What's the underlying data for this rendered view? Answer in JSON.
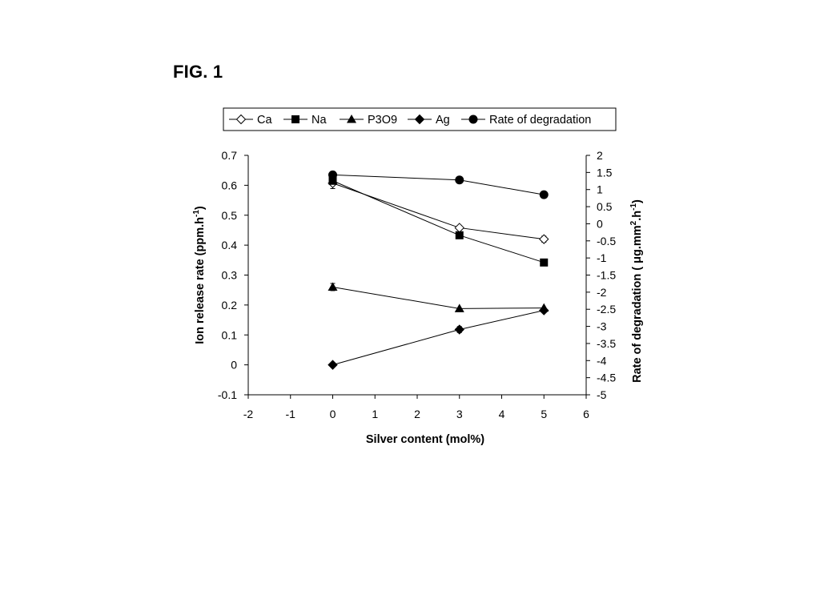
{
  "figure": {
    "title": "FIG. 1"
  },
  "chart_data": {
    "type": "line",
    "x": {
      "label": "Silver content (mol%)",
      "ticks": [
        -2,
        -1,
        0,
        1,
        2,
        3,
        4,
        5,
        6
      ],
      "range": [
        -2,
        6
      ]
    },
    "y_left": {
      "label_base": "Ion release rate (ppm.h",
      "label_sup": "-1",
      "label_end": ")",
      "ticks": [
        -0.1,
        0,
        0.1,
        0.2,
        0.3,
        0.4,
        0.5,
        0.6,
        0.7
      ],
      "tick_labels": [
        "-0.1",
        "0",
        "0.1",
        "0.2",
        "0.3",
        "0.4",
        "0.5",
        "0.6",
        "0.7"
      ],
      "range": [
        -0.1,
        0.7
      ]
    },
    "y_right": {
      "label_parts": [
        {
          "text": "Rate of degradation ( ",
          "sup": false
        },
        {
          "text": "μ",
          "sup": false
        },
        {
          "text": "g.mm",
          "sup": false
        },
        {
          "text": "2",
          "sup": true
        },
        {
          "text": ".h",
          "sup": false
        },
        {
          "text": "-1",
          "sup": true
        },
        {
          "text": ")",
          "sup": false
        }
      ],
      "ticks": [
        -5,
        -4.5,
        -4,
        -3.5,
        -3,
        -2.5,
        -2,
        -1.5,
        -1,
        -0.5,
        0,
        0.5,
        1,
        1.5,
        2
      ],
      "tick_labels": [
        "-5",
        "-4.5",
        "-4",
        "-3.5",
        "-3",
        "-2.5",
        "-2",
        "-1.5",
        "-1",
        "-0.5",
        "0",
        "0.5",
        "1",
        "1.5",
        "2"
      ],
      "range": [
        -5,
        2
      ]
    },
    "legend": {
      "placement": "top",
      "entries": [
        "Ca",
        "Na",
        "P3O9",
        "Ag",
        "Rate of degradation"
      ]
    },
    "series": [
      {
        "name": "Ca",
        "marker": "diamond-open",
        "axis": "left",
        "x": [
          0,
          3,
          5
        ],
        "y": [
          0.607,
          0.458,
          0.42
        ],
        "err": [
          0.018,
          0.008,
          0.01
        ]
      },
      {
        "name": "Na",
        "marker": "square",
        "axis": "left",
        "x": [
          0,
          3,
          5
        ],
        "y": [
          0.615,
          0.433,
          0.342
        ],
        "err": [
          0,
          0,
          0
        ]
      },
      {
        "name": "P3O9",
        "marker": "triangle",
        "axis": "left",
        "x": [
          0,
          3,
          5
        ],
        "y": [
          0.26,
          0.188,
          0.19
        ],
        "err": [
          0.012,
          0,
          0
        ]
      },
      {
        "name": "Ag",
        "marker": "diamond",
        "axis": "left",
        "x": [
          0,
          3,
          5
        ],
        "y": [
          0.0,
          0.118,
          0.182
        ],
        "err": [
          0,
          0.01,
          0
        ]
      },
      {
        "name": "Rate of degradation",
        "marker": "circle",
        "axis": "right",
        "x": [
          0,
          3,
          5
        ],
        "y": [
          1.43,
          1.28,
          0.85
        ],
        "err": [
          0,
          0,
          0
        ]
      }
    ],
    "grid": false
  }
}
